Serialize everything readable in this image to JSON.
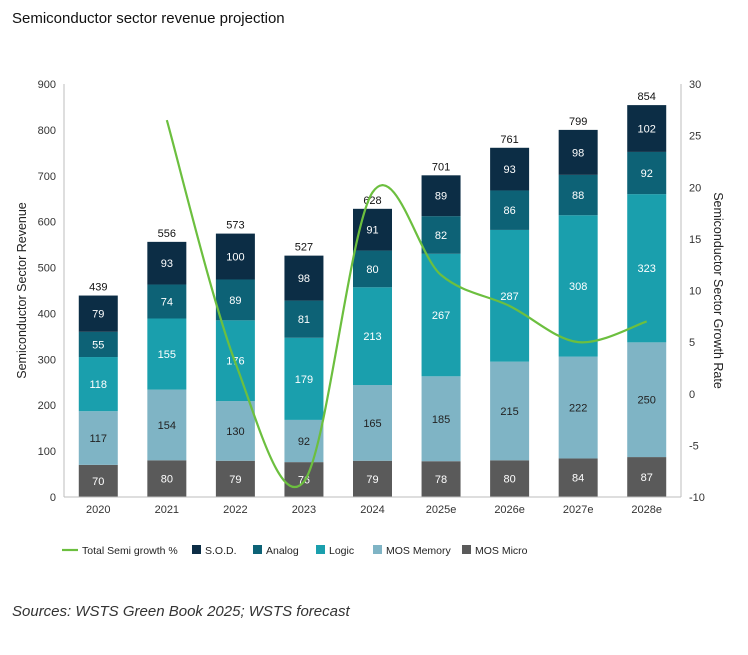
{
  "page": {
    "title": "Semiconductor sector revenue projection",
    "source": "Sources: WSTS Green Book 2025; WSTS forecast"
  },
  "chart_data": {
    "type": "bar",
    "stacked": true,
    "title": "Semiconductor sector revenue projection",
    "categories": [
      "2020",
      "2021",
      "2022",
      "2023",
      "2024",
      "2025e",
      "2026e",
      "2027e",
      "2028e"
    ],
    "series": [
      {
        "name": "MOS Micro",
        "color": "#5a5a5a",
        "label_color": "#ffffff",
        "values": [
          70,
          80,
          79,
          76,
          79,
          78,
          80,
          84,
          87
        ]
      },
      {
        "name": "MOS Memory",
        "color": "#7fb4c5",
        "label_color": "#222222",
        "values": [
          117,
          154,
          130,
          92,
          165,
          185,
          215,
          222,
          250
        ]
      },
      {
        "name": "Logic",
        "color": "#1a9fad",
        "label_color": "#ffffff",
        "values": [
          118,
          155,
          176,
          179,
          213,
          267,
          287,
          308,
          323
        ]
      },
      {
        "name": "Analog",
        "color": "#0d6276",
        "label_color": "#ffffff",
        "values": [
          55,
          74,
          89,
          81,
          80,
          82,
          86,
          88,
          92
        ]
      },
      {
        "name": "S.O.D.",
        "color": "#0c2d45",
        "label_color": "#ffffff",
        "values": [
          79,
          93,
          100,
          98,
          91,
          89,
          93,
          98,
          102
        ]
      }
    ],
    "totals": [
      439,
      556,
      573,
      527,
      628,
      701,
      761,
      799,
      854
    ],
    "line": {
      "name": "Total Semi growth %",
      "color": "#6cbf3f",
      "axis": "right",
      "values": [
        null,
        26.5,
        3.0,
        -8.5,
        19.5,
        11.5,
        8.5,
        5.0,
        7.0
      ]
    },
    "ylabel": "Semiconductor Sector Revenue",
    "y2label": "Semiconductor Sector Growth Rate",
    "xlabel": "",
    "ylim": [
      0,
      900
    ],
    "yticks": [
      0,
      100,
      200,
      300,
      400,
      500,
      600,
      700,
      800,
      900
    ],
    "y2lim": [
      -10,
      30
    ],
    "y2ticks": [
      -10,
      -5,
      0,
      5,
      10,
      15,
      20,
      25,
      30
    ],
    "grid": false,
    "legend_position": "bottom",
    "legend_order": [
      "Total Semi growth %",
      "S.O.D.",
      "Analog",
      "Logic",
      "MOS Memory",
      "MOS Micro"
    ]
  }
}
